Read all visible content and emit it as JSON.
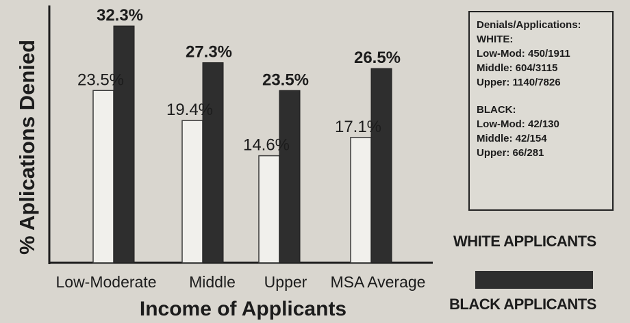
{
  "chart_data": {
    "type": "bar",
    "xlabel": "Income of Applicants",
    "ylabel": "% Aplications Denied",
    "categories": [
      "Low-Moderate",
      "Middle",
      "Upper",
      "MSA Average"
    ],
    "series": [
      {
        "name": "WHITE APPLICANTS",
        "values": [
          23.5,
          19.4,
          14.6,
          17.1
        ],
        "labels": [
          "23.5%",
          "19.4%",
          "14.6%",
          "17.1%"
        ],
        "color": "#f1f0ec"
      },
      {
        "name": "BLACK APPLICANTS",
        "values": [
          32.3,
          27.3,
          23.5,
          26.5
        ],
        "labels": [
          "32.3%",
          "27.3%",
          "23.5%",
          "26.5%"
        ],
        "color": "#2e2e2e"
      }
    ],
    "ylim": [
      0,
      35
    ],
    "grid": false,
    "legend": "right"
  },
  "notes": {
    "title": "Denials/Applications:",
    "white_heading": "WHITE:",
    "white_rows": [
      "Low-Mod: 450/1911",
      "Middle: 604/3115",
      "Upper: 1140/7826"
    ],
    "black_heading": "BLACK:",
    "black_rows": [
      "Low-Mod: 42/130",
      "Middle: 42/154",
      "Upper: 66/281"
    ]
  },
  "legend": {
    "white_label": "WHITE APPLICANTS",
    "black_label": "BLACK APPLICANTS"
  }
}
